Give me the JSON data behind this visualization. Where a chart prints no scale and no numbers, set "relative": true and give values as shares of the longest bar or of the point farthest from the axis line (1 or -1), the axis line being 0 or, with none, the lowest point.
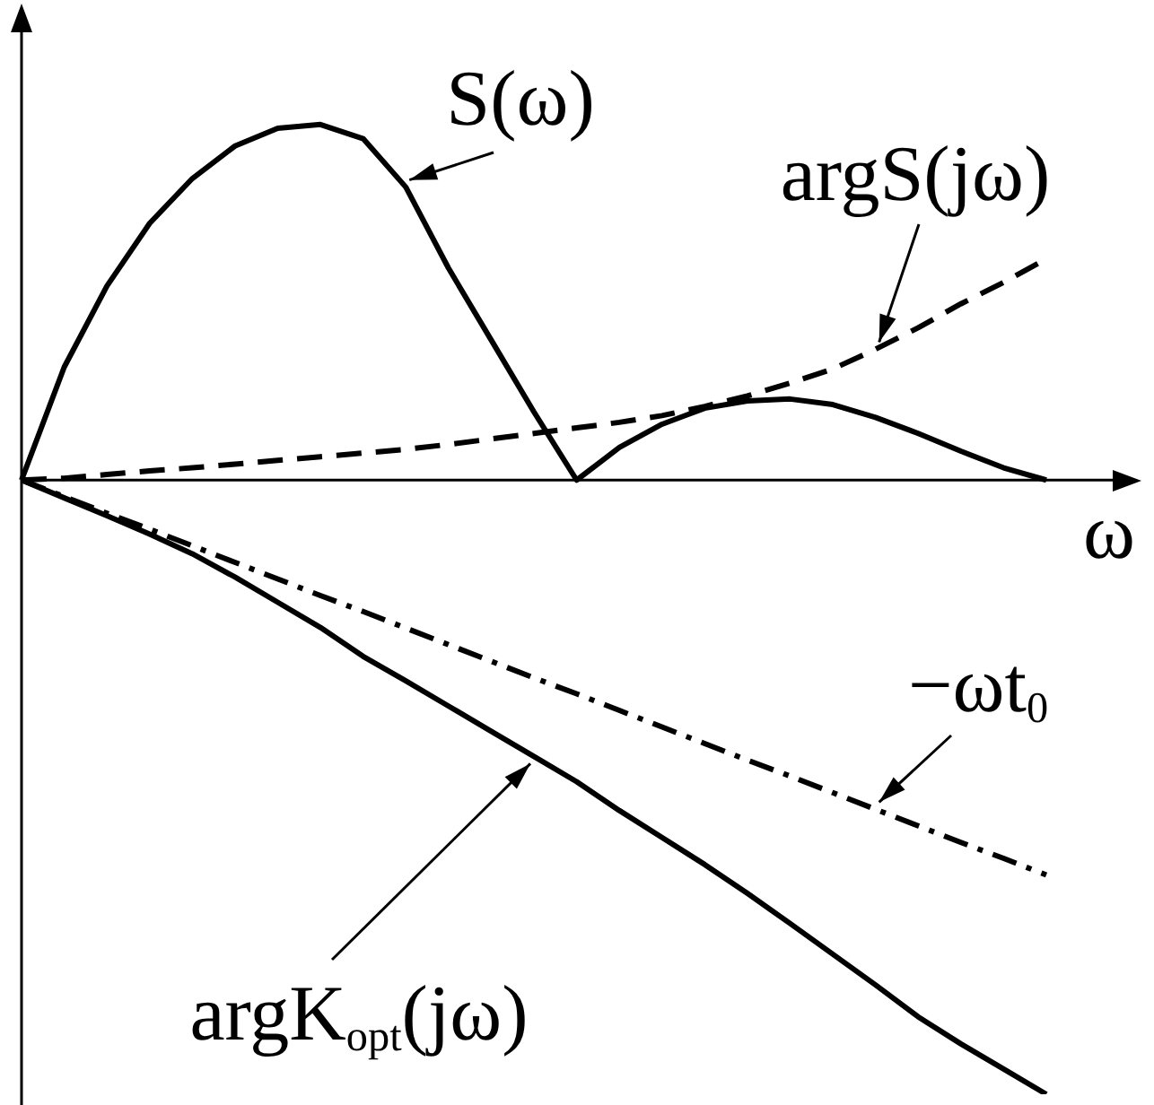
{
  "chart_data": {
    "type": "line",
    "relative": true,
    "xlabel": "ω",
    "legend": false,
    "grid": false,
    "marker": "none",
    "categories": [
      null,
      null,
      null,
      null,
      null,
      null,
      null,
      null,
      null,
      null,
      null,
      null,
      null,
      null,
      null,
      null,
      null,
      null,
      null,
      null,
      null,
      null,
      null,
      null,
      null
    ],
    "series": [
      {
        "name": "S(ω)",
        "color": "#000000",
        "line_style": "solid",
        "values": [
          0,
          0.184,
          0.316,
          0.418,
          0.491,
          0.544,
          0.573,
          0.579,
          0.556,
          0.477,
          0.345,
          0.228,
          0.111,
          0,
          0.053,
          0.091,
          0.117,
          0.129,
          0.132,
          0.123,
          0.102,
          0.076,
          0.047,
          0.02,
          0
        ]
      },
      {
        "name": "argS(jω)",
        "color": "#000000",
        "line_style": "dashed",
        "values": [
          0,
          0.003,
          0.009,
          0.015,
          0.02,
          0.026,
          0.032,
          0.038,
          0.044,
          0.05,
          0.058,
          0.067,
          0.076,
          0.085,
          0.094,
          0.105,
          0.12,
          0.137,
          0.158,
          0.181,
          0.213,
          0.248,
          0.287,
          0.322,
          0.36
        ]
      },
      {
        "name": "−ωt$_{0}$",
        "color": "#000000",
        "line_style": "dashdot",
        "values": [
          0,
          -0.027,
          -0.054,
          -0.08,
          -0.107,
          -0.134,
          -0.161,
          -0.188,
          -0.214,
          -0.241,
          -0.268,
          -0.295,
          -0.322,
          -0.348,
          -0.375,
          -0.402,
          -0.429,
          -0.456,
          -0.482,
          -0.509,
          -0.536,
          -0.563,
          -0.59,
          -0.616,
          -0.643
        ]
      },
      {
        "name": "argK$_{opt}$(jω)",
        "color": "#000000",
        "line_style": "solid",
        "values": [
          0,
          -0.029,
          -0.058,
          -0.088,
          -0.12,
          -0.158,
          -0.199,
          -0.24,
          -0.287,
          -0.327,
          -0.368,
          -0.409,
          -0.45,
          -0.491,
          -0.538,
          -0.582,
          -0.626,
          -0.673,
          -0.722,
          -0.772,
          -0.822,
          -0.874,
          -0.918,
          -0.959,
          -1
        ]
      }
    ]
  }
}
